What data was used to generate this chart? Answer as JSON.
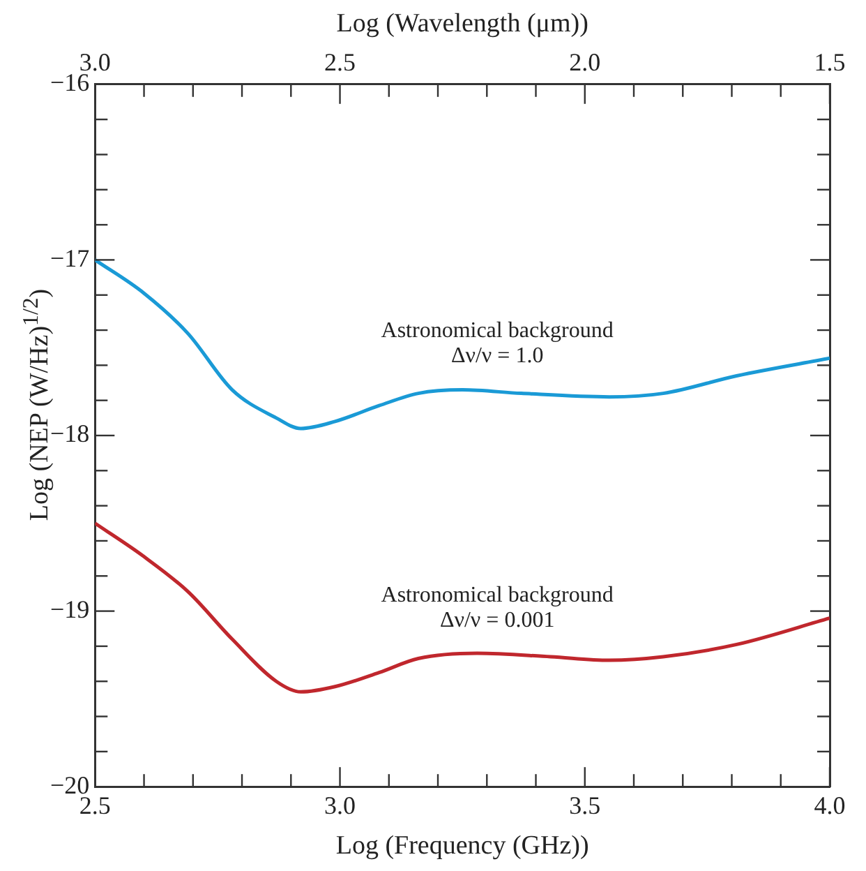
{
  "chart_data": {
    "type": "line",
    "xlabel": "Log (Frequency (GHz))",
    "ylabel": "Log (NEP (W/Hz)$^{1/2}$)",
    "x2label": "Log (Wavelength (μm))",
    "xlim": [
      2.5,
      4.0
    ],
    "ylim": [
      -20,
      -16
    ],
    "x2lim": [
      3.0,
      1.5
    ],
    "xticks": [
      {
        "value": 2.5,
        "label": "2.5"
      },
      {
        "value": 2.6,
        "label": null
      },
      {
        "value": 2.7,
        "label": null
      },
      {
        "value": 2.8,
        "label": null
      },
      {
        "value": 2.9,
        "label": null
      },
      {
        "value": 3.0,
        "label": "3.0"
      },
      {
        "value": 3.1,
        "label": null
      },
      {
        "value": 3.2,
        "label": null
      },
      {
        "value": 3.3,
        "label": null
      },
      {
        "value": 3.4,
        "label": null
      },
      {
        "value": 3.5,
        "label": "3.5"
      },
      {
        "value": 3.6,
        "label": null
      },
      {
        "value": 3.7,
        "label": null
      },
      {
        "value": 3.8,
        "label": null
      },
      {
        "value": 3.9,
        "label": null
      },
      {
        "value": 4.0,
        "label": "4.0"
      }
    ],
    "x2ticks": [
      {
        "value": 3.0,
        "label": "3.0"
      },
      {
        "value": 2.9,
        "label": null
      },
      {
        "value": 2.8,
        "label": null
      },
      {
        "value": 2.7,
        "label": null
      },
      {
        "value": 2.6,
        "label": null
      },
      {
        "value": 2.5,
        "label": "2.5"
      },
      {
        "value": 2.4,
        "label": null
      },
      {
        "value": 2.3,
        "label": null
      },
      {
        "value": 2.2,
        "label": null
      },
      {
        "value": 2.1,
        "label": null
      },
      {
        "value": 2.0,
        "label": "2.0"
      },
      {
        "value": 1.9,
        "label": null
      },
      {
        "value": 1.8,
        "label": null
      },
      {
        "value": 1.7,
        "label": null
      },
      {
        "value": 1.6,
        "label": null
      },
      {
        "value": 1.5,
        "label": "1.5"
      }
    ],
    "yticks": [
      -20,
      {
        "value": -19.8,
        "label": null
      },
      {
        "value": -19.6,
        "label": null
      },
      {
        "value": -19.4,
        "label": null
      },
      {
        "value": -19.2,
        "label": null
      },
      -19,
      {
        "value": -18.8,
        "label": null
      },
      {
        "value": -18.6,
        "label": null
      },
      {
        "value": -18.4,
        "label": null
      },
      {
        "value": -18.2,
        "label": null
      },
      -18,
      {
        "value": -17.8,
        "label": null
      },
      {
        "value": -17.6,
        "label": null
      },
      {
        "value": -17.4,
        "label": null
      },
      {
        "value": -17.2,
        "label": null
      },
      -17,
      {
        "value": -16.8,
        "label": null
      },
      {
        "value": -16.6,
        "label": null
      },
      {
        "value": -16.4,
        "label": null
      },
      {
        "value": -16.2,
        "label": null
      },
      -16
    ],
    "grid": false,
    "legend": false,
    "marker": "none",
    "line_style": "solid",
    "series": [
      {
        "name": "Astronomical background\nΔν/ν = 1.0",
        "color": "#1a9ad6",
        "x": [
          2.5,
          2.6,
          2.69,
          2.78,
          2.87,
          2.92,
          2.99,
          3.08,
          3.16,
          3.25,
          3.37,
          3.55,
          3.66,
          3.81,
          4.0
        ],
        "values": [
          -17.0,
          -17.19,
          -17.42,
          -17.74,
          -17.9,
          -17.96,
          -17.92,
          -17.83,
          -17.76,
          -17.74,
          -17.76,
          -17.78,
          -17.76,
          -17.66,
          -17.56
        ]
      },
      {
        "name": "Astronomical background\nΔν/ν = 0.001",
        "color": "#c0272d",
        "x": [
          2.5,
          2.6,
          2.69,
          2.78,
          2.87,
          2.92,
          2.99,
          3.08,
          3.16,
          3.28,
          3.43,
          3.55,
          3.66,
          3.81,
          4.0
        ],
        "values": [
          -18.5,
          -18.69,
          -18.89,
          -19.16,
          -19.4,
          -19.46,
          -19.43,
          -19.35,
          -19.27,
          -19.24,
          -19.26,
          -19.28,
          -19.26,
          -19.19,
          -19.04
        ]
      }
    ]
  }
}
